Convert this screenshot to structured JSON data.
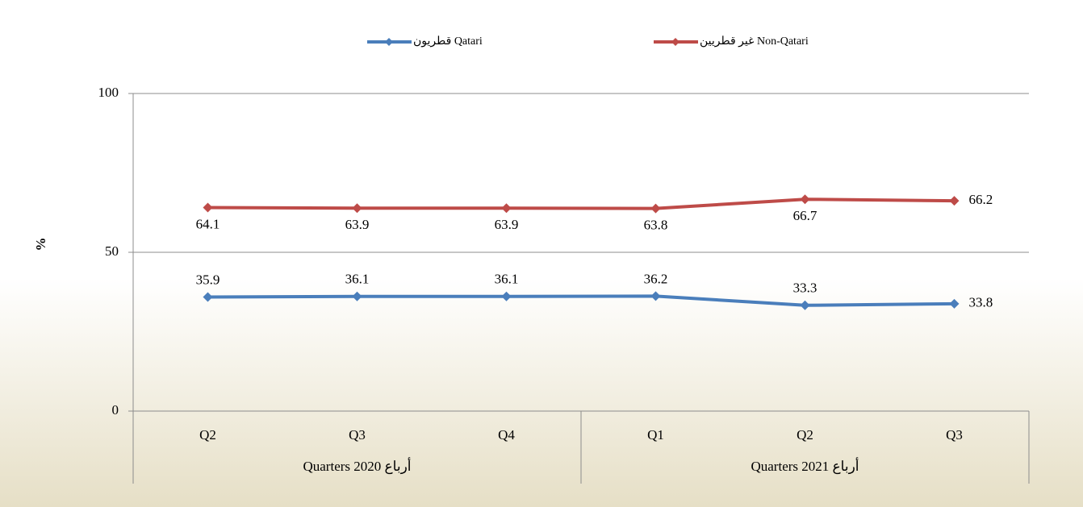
{
  "chart_data": {
    "type": "line",
    "y_label": "%",
    "categories": [
      "Q2",
      "Q3",
      "Q4",
      "Q1",
      "Q2",
      "Q3"
    ],
    "groups": [
      {
        "label": "Quarters 2020 أرباع",
        "span": 3
      },
      {
        "label": "Quarters 2021 أرباع",
        "span": 3
      }
    ],
    "series": [
      {
        "name": "قطريون Qatari",
        "color": "#4a7ebb",
        "values": [
          35.9,
          36.1,
          36.1,
          36.2,
          33.3,
          33.8
        ]
      },
      {
        "name": "غير قطريين Non-Qatari",
        "color": "#be4b48",
        "values": [
          64.1,
          63.9,
          63.9,
          63.8,
          66.7,
          66.2
        ]
      }
    ],
    "ylim": [
      0,
      100
    ],
    "yticks": [
      0,
      50,
      100
    ],
    "grid": true,
    "legend": "top"
  }
}
